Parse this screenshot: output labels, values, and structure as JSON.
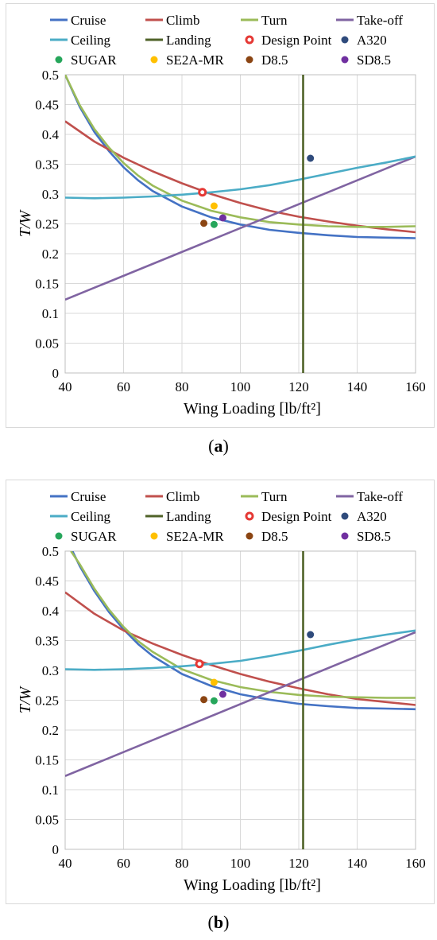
{
  "captions": [
    {
      "open": "(",
      "letter": "a",
      "close": ")"
    },
    {
      "open": "(",
      "letter": "b",
      "close": ")"
    }
  ],
  "chart_data": [
    {
      "type": "line",
      "xlabel": "Wing Loading [lb/ft²]",
      "ylabel": "T/W",
      "xlim": [
        40,
        160
      ],
      "ylim": [
        0,
        0.5
      ],
      "xticks": [
        "40",
        "60",
        "80",
        "100",
        "120",
        "140",
        "160"
      ],
      "yticks": [
        "0",
        "0.05",
        "0.1",
        "0.15",
        "0.2",
        "0.25",
        "0.3",
        "0.35",
        "0.4",
        "0.45",
        "0.5"
      ],
      "grid": true,
      "legend_position": "top",
      "series": [
        {
          "name": "Cruise",
          "color": "#4472c4",
          "x": [
            40,
            45,
            50,
            55,
            60,
            65,
            70,
            80,
            90,
            100,
            110,
            120,
            130,
            140,
            150,
            160
          ],
          "y": [
            0.5,
            0.446,
            0.404,
            0.372,
            0.345,
            0.323,
            0.305,
            0.279,
            0.261,
            0.249,
            0.24,
            0.235,
            0.231,
            0.228,
            0.227,
            0.226
          ]
        },
        {
          "name": "Climb",
          "color": "#c0504d",
          "x": [
            40,
            50,
            60,
            70,
            80,
            90,
            100,
            110,
            120,
            130,
            140,
            150,
            160
          ],
          "y": [
            0.422,
            0.388,
            0.361,
            0.338,
            0.318,
            0.3,
            0.285,
            0.272,
            0.262,
            0.254,
            0.247,
            0.241,
            0.236
          ]
        },
        {
          "name": "Turn",
          "color": "#9bbb59",
          "x": [
            40,
            45,
            50,
            55,
            60,
            65,
            70,
            80,
            90,
            100,
            110,
            120,
            130,
            140,
            150,
            160
          ],
          "y": [
            0.5,
            0.449,
            0.409,
            0.378,
            0.352,
            0.331,
            0.314,
            0.289,
            0.272,
            0.261,
            0.253,
            0.249,
            0.246,
            0.245,
            0.245,
            0.246
          ]
        },
        {
          "name": "Take-off",
          "color": "#8064a2",
          "x": [
            40,
            160
          ],
          "y": [
            0.123,
            0.363
          ]
        },
        {
          "name": "Ceiling",
          "color": "#4bacc6",
          "x": [
            40,
            50,
            60,
            70,
            80,
            90,
            100,
            110,
            120,
            130,
            140,
            150,
            160
          ],
          "y": [
            0.294,
            0.293,
            0.294,
            0.296,
            0.299,
            0.303,
            0.308,
            0.315,
            0.324,
            0.334,
            0.344,
            0.353,
            0.363
          ]
        },
        {
          "name": "Landing",
          "color": "#4f6228",
          "x": [
            121.5,
            121.5
          ],
          "y": [
            0,
            0.5
          ]
        }
      ],
      "points": [
        {
          "name": "Design Point",
          "color": "#e53935",
          "hollow": true,
          "x": 87,
          "y": 0.303
        },
        {
          "name": "A320",
          "color": "#2f4b7c",
          "x": 124,
          "y": 0.36
        },
        {
          "name": "SUGAR",
          "color": "#26a65b",
          "x": 91,
          "y": 0.249
        },
        {
          "name": "SE2A-MR",
          "color": "#ffc000",
          "x": 91,
          "y": 0.28
        },
        {
          "name": "D8.5",
          "color": "#8b4513",
          "x": 87.5,
          "y": 0.251
        },
        {
          "name": "SD8.5",
          "color": "#7030a0",
          "x": 94,
          "y": 0.26
        }
      ]
    },
    {
      "type": "line",
      "xlabel": "Wing Loading [lb/ft²]",
      "ylabel": "T/W",
      "xlim": [
        40,
        160
      ],
      "ylim": [
        0,
        0.5
      ],
      "xticks": [
        "40",
        "60",
        "80",
        "100",
        "120",
        "140",
        "160"
      ],
      "yticks": [
        "0",
        "0.05",
        "0.1",
        "0.15",
        "0.2",
        "0.25",
        "0.3",
        "0.35",
        "0.4",
        "0.45",
        "0.5"
      ],
      "grid": true,
      "legend_position": "top",
      "series": [
        {
          "name": "Cruise",
          "color": "#4472c4",
          "x": [
            42.5,
            45,
            50,
            55,
            60,
            65,
            70,
            80,
            90,
            100,
            110,
            120,
            130,
            140,
            150,
            160
          ],
          "y": [
            0.5,
            0.475,
            0.433,
            0.398,
            0.369,
            0.344,
            0.324,
            0.294,
            0.274,
            0.26,
            0.251,
            0.244,
            0.24,
            0.237,
            0.236,
            0.235
          ]
        },
        {
          "name": "Climb",
          "color": "#c0504d",
          "x": [
            40,
            50,
            60,
            70,
            80,
            90,
            100,
            110,
            120,
            130,
            140,
            150,
            160
          ],
          "y": [
            0.431,
            0.395,
            0.367,
            0.345,
            0.326,
            0.309,
            0.294,
            0.281,
            0.27,
            0.26,
            0.252,
            0.247,
            0.242
          ]
        },
        {
          "name": "Turn",
          "color": "#9bbb59",
          "x": [
            42,
            45,
            50,
            55,
            60,
            65,
            70,
            80,
            90,
            100,
            110,
            120,
            130,
            140,
            150,
            160
          ],
          "y": [
            0.5,
            0.478,
            0.437,
            0.402,
            0.373,
            0.349,
            0.331,
            0.302,
            0.284,
            0.272,
            0.264,
            0.259,
            0.256,
            0.255,
            0.254,
            0.254
          ]
        },
        {
          "name": "Take-off",
          "color": "#8064a2",
          "x": [
            40,
            160
          ],
          "y": [
            0.123,
            0.364
          ]
        },
        {
          "name": "Ceiling",
          "color": "#4bacc6",
          "x": [
            40,
            50,
            60,
            70,
            80,
            90,
            100,
            110,
            120,
            130,
            140,
            150,
            160
          ],
          "y": [
            0.302,
            0.301,
            0.302,
            0.304,
            0.307,
            0.311,
            0.316,
            0.324,
            0.333,
            0.343,
            0.352,
            0.36,
            0.367
          ]
        },
        {
          "name": "Landing",
          "color": "#4f6228",
          "x": [
            121.5,
            121.5
          ],
          "y": [
            0,
            0.5
          ]
        }
      ],
      "points": [
        {
          "name": "Design Point",
          "color": "#e53935",
          "hollow": true,
          "x": 86,
          "y": 0.311
        },
        {
          "name": "A320",
          "color": "#2f4b7c",
          "x": 124,
          "y": 0.36
        },
        {
          "name": "SUGAR",
          "color": "#26a65b",
          "x": 91,
          "y": 0.249
        },
        {
          "name": "SE2A-MR",
          "color": "#ffc000",
          "x": 91,
          "y": 0.28
        },
        {
          "name": "D8.5",
          "color": "#8b4513",
          "x": 87.5,
          "y": 0.251
        },
        {
          "name": "SD8.5",
          "color": "#7030a0",
          "x": 94,
          "y": 0.26
        }
      ]
    }
  ]
}
